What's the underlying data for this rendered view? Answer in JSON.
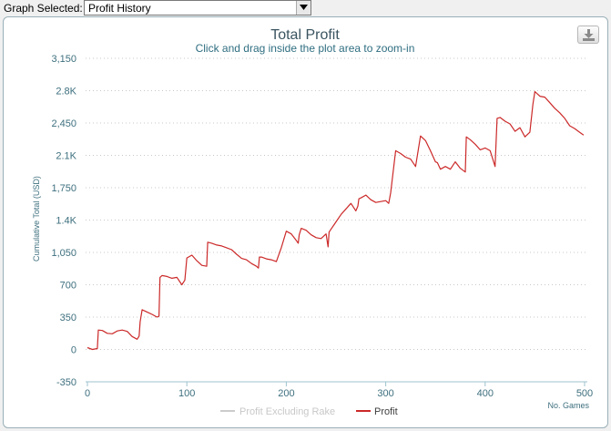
{
  "toolbar": {
    "graph_selected_label": "Graph Selected:",
    "graph_selected_value": "Profit History"
  },
  "icons": {
    "download": "download-icon",
    "dropdown": "chevron-down-icon"
  },
  "chart_data": {
    "type": "line",
    "title": "Total Profit",
    "subtitle": "Click and drag inside the plot area to zoom-in",
    "ylabel": "Cumulative Total (USD)",
    "xlabel": "No. Games",
    "xlim": [
      0,
      500
    ],
    "ylim": [
      -350,
      3150
    ],
    "x_ticks": [
      "0",
      "100",
      "200",
      "300",
      "400",
      "500"
    ],
    "y_ticks": [
      "-350",
      "0",
      "350",
      "700",
      "1,050",
      "1.4K",
      "1,750",
      "2.1K",
      "2,450",
      "2.8K",
      "3,150"
    ],
    "grid": true,
    "legend_placement": "bottom-center",
    "series": [
      {
        "name": "Profit Excluding Rake",
        "color": "#cccccc",
        "x": [],
        "y": []
      },
      {
        "name": "Profit",
        "color": "#cc2929",
        "x": [
          0,
          5,
          10,
          11,
          15,
          20,
          25,
          30,
          35,
          40,
          45,
          50,
          52,
          53,
          55,
          60,
          65,
          70,
          72,
          73,
          75,
          80,
          85,
          90,
          95,
          98,
          100,
          105,
          110,
          115,
          120,
          121,
          125,
          130,
          135,
          140,
          145,
          150,
          155,
          160,
          165,
          170,
          172,
          173,
          175,
          180,
          185,
          190,
          195,
          200,
          205,
          210,
          212,
          213,
          215,
          220,
          225,
          230,
          235,
          240,
          242,
          243,
          245,
          250,
          255,
          260,
          265,
          270,
          272,
          273,
          275,
          280,
          285,
          290,
          295,
          300,
          303,
          305,
          310,
          315,
          320,
          325,
          330,
          335,
          340,
          345,
          350,
          352,
          355,
          360,
          365,
          370,
          375,
          380,
          381,
          385,
          390,
          395,
          400,
          405,
          410,
          412,
          415,
          420,
          425,
          430,
          435,
          440,
          445,
          448,
          450,
          453,
          455,
          460,
          465,
          470,
          475,
          480,
          485,
          490,
          495,
          499
        ],
        "y": [
          20,
          0,
          10,
          210,
          205,
          175,
          170,
          200,
          210,
          195,
          140,
          110,
          145,
          300,
          430,
          405,
          380,
          350,
          360,
          780,
          800,
          790,
          770,
          780,
          700,
          750,
          990,
          1020,
          960,
          910,
          900,
          1160,
          1150,
          1130,
          1120,
          1100,
          1080,
          1030,
          985,
          970,
          930,
          900,
          880,
          1000,
          1000,
          980,
          970,
          950,
          1100,
          1280,
          1250,
          1180,
          1150,
          1240,
          1310,
          1290,
          1240,
          1210,
          1200,
          1250,
          1110,
          1270,
          1300,
          1380,
          1460,
          1520,
          1580,
          1500,
          1550,
          1630,
          1640,
          1670,
          1620,
          1590,
          1600,
          1610,
          1580,
          1700,
          2150,
          2120,
          2080,
          2060,
          1980,
          2310,
          2260,
          2150,
          2030,
          2020,
          1950,
          1980,
          1950,
          2030,
          1960,
          1920,
          2300,
          2270,
          2220,
          2160,
          2180,
          2150,
          1980,
          2500,
          2510,
          2470,
          2440,
          2360,
          2400,
          2300,
          2350,
          2650,
          2790,
          2760,
          2740,
          2730,
          2670,
          2610,
          2560,
          2500,
          2420,
          2390,
          2350,
          2320
        ]
      }
    ]
  }
}
